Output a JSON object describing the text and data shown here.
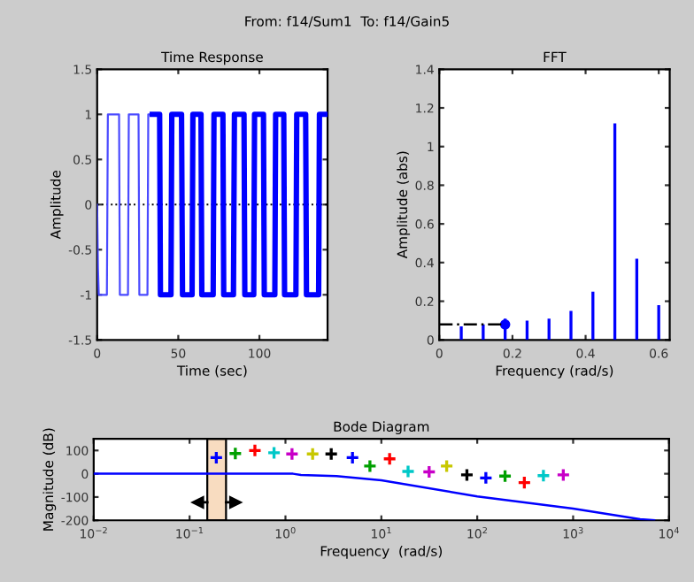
{
  "chart_data": [
    {
      "type": "line",
      "title": "Time Response",
      "xlabel": "Time (sec)",
      "ylabel": "Amplitude",
      "annotations": [
        "From: f14/Sum1  To: f14/Gain5"
      ],
      "xlim": [
        0,
        142
      ],
      "ylim": [
        -1.5,
        1.5
      ],
      "xticks": [
        0,
        50,
        100
      ],
      "yticks": [
        -1.5,
        -1,
        -0.5,
        0,
        0.5,
        1,
        1.5
      ],
      "grid": false,
      "ref_lines": [
        {
          "axis": "y",
          "value": 0,
          "color": "#000000",
          "line_style": "dotted"
        }
      ],
      "series": [
        {
          "color": "#4a4aff",
          "x": [
            0,
            0.5,
            1,
            6,
            6.6,
            13.5,
            14,
            19,
            19.5,
            25.5,
            26,
            31,
            31.5,
            34
          ],
          "values": [
            0,
            -0.7,
            -1,
            -1,
            1,
            1,
            -1,
            -1,
            1,
            1,
            -1,
            -1,
            1,
            1
          ]
        },
        {
          "color": "#0000ff",
          "x": [
            34,
            38.5,
            39,
            45.5,
            46,
            52,
            52.6,
            58.5,
            59,
            64,
            64.5,
            71.5,
            72,
            77.5,
            78,
            84,
            84.6,
            90.5,
            91,
            96.5,
            97,
            102.5,
            103,
            109.5,
            110,
            115,
            115.5,
            122.5,
            123,
            128.5,
            129,
            136.5,
            137,
            142
          ],
          "values": [
            1,
            1,
            -1,
            -1,
            1,
            1,
            -1,
            -1,
            1,
            1,
            -1,
            -1,
            1,
            1,
            -1,
            -1,
            1,
            1,
            -1,
            -1,
            1,
            1,
            -1,
            -1,
            1,
            1,
            -1,
            -1,
            1,
            1,
            -1,
            -1,
            1,
            1
          ]
        }
      ]
    },
    {
      "type": "bar",
      "title": "FFT",
      "xlabel": "Frequency (rad/s)",
      "ylabel": "Amplitude (abs)",
      "xlim": [
        0,
        0.63
      ],
      "ylim": [
        0,
        1.4
      ],
      "xticks": [
        0,
        0.2,
        0.4,
        0.6
      ],
      "yticks": [
        0,
        0.2,
        0.4,
        0.6,
        0.8,
        1,
        1.2,
        1.4
      ],
      "grid": false,
      "series": [
        {
          "type": "bar",
          "color": "#0000ff",
          "x": [
            0.06,
            0.12,
            0.18,
            0.24,
            0.3,
            0.36,
            0.42,
            0.48,
            0.54,
            0.6
          ],
          "values": [
            0.07,
            0.08,
            0.11,
            0.1,
            0.11,
            0.15,
            0.25,
            1.12,
            0.42,
            0.18
          ]
        },
        {
          "type": "line",
          "color": "#000000",
          "line_style": "dashed",
          "x": [
            0,
            0.18
          ],
          "values": [
            0.08,
            0.08
          ]
        },
        {
          "type": "scatter",
          "color": "#0000ff",
          "marker": "circle",
          "x": [
            0.18
          ],
          "values": [
            0.08
          ]
        }
      ]
    },
    {
      "type": "line",
      "title": "Bode Diagram",
      "xlabel": "Frequency  (rad/s)",
      "ylabel": "Magnitude (dB)",
      "log": "x",
      "xlim": [
        0.01,
        10000
      ],
      "ylim": [
        -200,
        150
      ],
      "xticks": [
        {
          "value": 0.01,
          "label": "10$^{−2}$"
        },
        {
          "value": 0.1,
          "label": "10$^{−1}$"
        },
        {
          "value": 1,
          "label": "10$^{0}$"
        },
        {
          "value": 10,
          "label": "10$^{1}$"
        },
        {
          "value": 100,
          "label": "10$^{2}$"
        },
        {
          "value": 1000,
          "label": "10$^{3}$"
        },
        {
          "value": 10000,
          "label": "10$^{4}$"
        }
      ],
      "yticks": [
        -200,
        -100,
        0,
        100
      ],
      "grid": false,
      "bands": [
        {
          "axis": "x",
          "from": 0.153,
          "to": 0.24,
          "color": "#f8dcc0"
        }
      ],
      "series": [
        {
          "type": "line",
          "color": "#0000ff",
          "x": [
            0.01,
            1.2,
            1.45,
            3.4,
            10,
            100,
            1000,
            5000,
            7000
          ],
          "values": [
            0,
            0,
            -5,
            -10,
            -28,
            -97,
            -150,
            -195,
            -200
          ]
        },
        {
          "type": "scatter",
          "marker": "cross",
          "x": [
            0.19,
            0.3,
            0.48,
            0.76,
            1.17,
            1.92,
            3.0,
            5.0,
            7.6,
            12.2,
            19,
            31.5,
            48,
            78,
            123,
            195,
            310,
            490,
            790
          ],
          "values": [
            69,
            87,
            100,
            90,
            85,
            85,
            85,
            69,
            33,
            64,
            10,
            8,
            33,
            -5,
            -18,
            -10,
            -38,
            -8,
            -5
          ],
          "colors": [
            "#0000ff",
            "#00a000",
            "#ff0000",
            "#00c8c8",
            "#c800c8",
            "#c8c800",
            "#000000",
            "#0000ff",
            "#00a000",
            "#ff0000",
            "#00c8c8",
            "#c800c8",
            "#c8c800",
            "#000000",
            "#0000ff",
            "#00a000",
            "#ff0000",
            "#00c8c8",
            "#c800c8"
          ]
        }
      ]
    }
  ]
}
